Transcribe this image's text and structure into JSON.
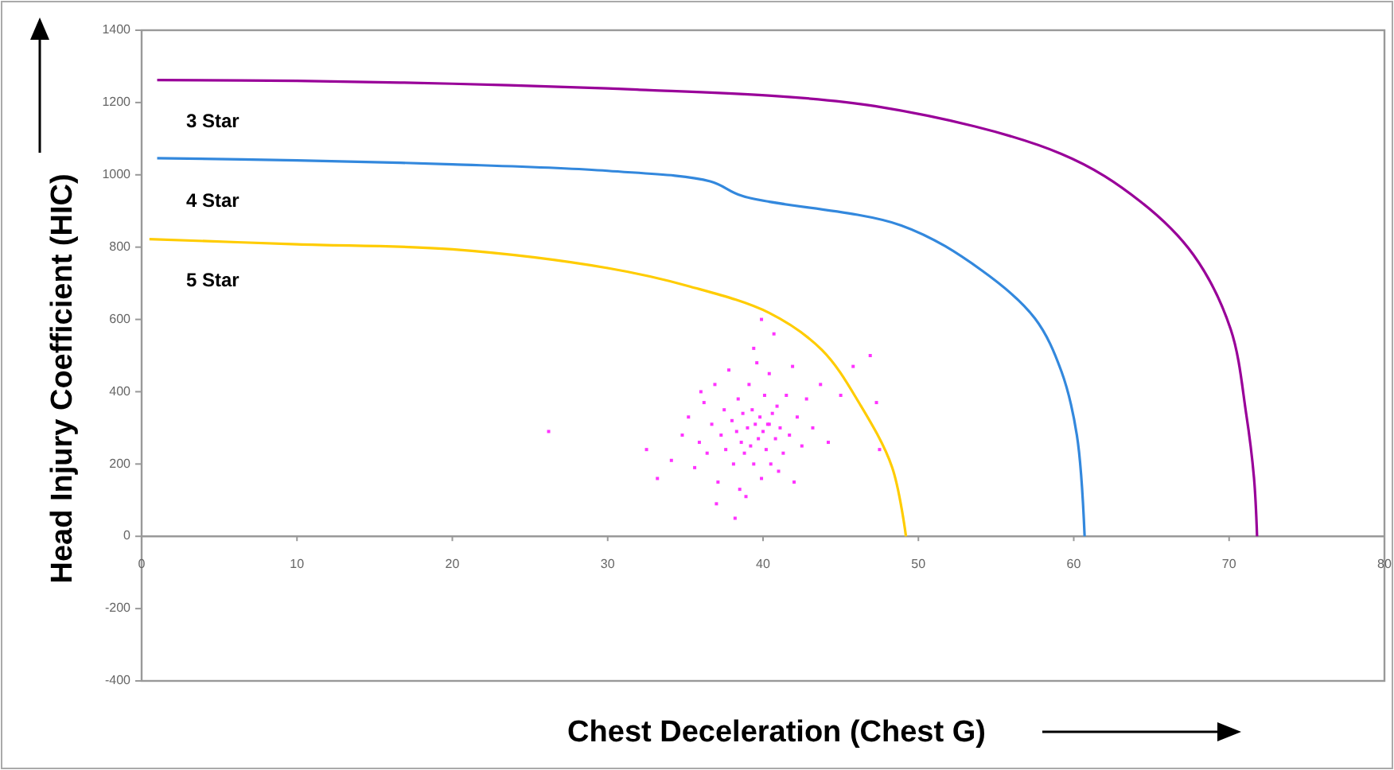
{
  "chart_data": {
    "type": "line",
    "xlabel": "Chest Deceleration (Chest G)",
    "ylabel": "Head Injury Coefficient (HIC)",
    "xlim": [
      0,
      80
    ],
    "xticks": [
      0,
      10,
      20,
      30,
      40,
      50,
      60,
      70,
      80
    ],
    "ylim": [
      -400,
      1400
    ],
    "yticks": [
      -400,
      -200,
      0,
      200,
      400,
      600,
      800,
      1000,
      1200,
      1400
    ],
    "grid": false,
    "marker": "none",
    "line_style": "solid",
    "annotations": [
      "3 Star",
      "4 Star",
      "5 Star"
    ],
    "series": [
      {
        "color": "#990099",
        "x": [
          1,
          10,
          20,
          30,
          31.9,
          47.2,
          59.2,
          64.3,
          67.7,
          70.1,
          71.1,
          71.6,
          71.8
        ],
        "values": [
          1262,
          1260,
          1252,
          1239,
          1236,
          1190,
          1058,
          926,
          779,
          573,
          339,
          163,
          0
        ]
      },
      {
        "color": "#3388dd",
        "x": [
          1,
          10,
          20,
          30,
          36.6,
          38.7,
          48.9,
          54.1,
          57.5,
          59.2,
          60.2,
          60.7
        ],
        "values": [
          1046,
          1040,
          1029,
          1011,
          982,
          941,
          860,
          735,
          603,
          457,
          280,
          0
        ]
      },
      {
        "color": "#ffcc00",
        "x": [
          0.5,
          10,
          20,
          30,
          35.3,
          40.4,
          43.8,
          46.2,
          48.3,
          49.2
        ],
        "values": [
          822,
          808,
          794,
          742,
          691,
          618,
          515,
          368,
          192,
          0
        ]
      },
      {
        "type": "scatter",
        "marker": "square",
        "color": "#ff33ff",
        "x": [
          26.2,
          32.5,
          33.2,
          34.1,
          34.8,
          35.2,
          35.6,
          35.9,
          36.2,
          36.4,
          36.7,
          36.9,
          37.1,
          37.3,
          37.5,
          37.6,
          37.8,
          38.0,
          38.1,
          38.3,
          38.4,
          38.6,
          38.7,
          38.9,
          39.0,
          39.1,
          39.2,
          39.3,
          39.4,
          39.5,
          39.6,
          39.7,
          39.8,
          39.9,
          40.0,
          40.1,
          40.2,
          40.3,
          40.4,
          40.5,
          40.6,
          40.8,
          40.9,
          41.1,
          41.3,
          41.5,
          41.7,
          41.9,
          42.2,
          42.5,
          42.8,
          43.2,
          43.7,
          44.2,
          45.0,
          45.8,
          46.9,
          47.3,
          47.5,
          38.2,
          39.4,
          37.0,
          40.7,
          38.8,
          41.0,
          36.0,
          42.0,
          39.9,
          38.5,
          40.4
        ],
        "values": [
          290,
          240,
          160,
          210,
          280,
          330,
          190,
          260,
          370,
          230,
          310,
          420,
          150,
          280,
          350,
          240,
          460,
          320,
          200,
          290,
          380,
          260,
          340,
          110,
          300,
          420,
          250,
          350,
          200,
          310,
          480,
          270,
          330,
          160,
          290,
          390,
          240,
          310,
          450,
          200,
          340,
          270,
          360,
          300,
          230,
          390,
          280,
          470,
          330,
          250,
          380,
          300,
          420,
          260,
          390,
          470,
          500,
          370,
          240,
          50,
          520,
          90,
          560,
          230,
          180,
          400,
          150,
          600,
          130,
          310
        ]
      }
    ]
  }
}
